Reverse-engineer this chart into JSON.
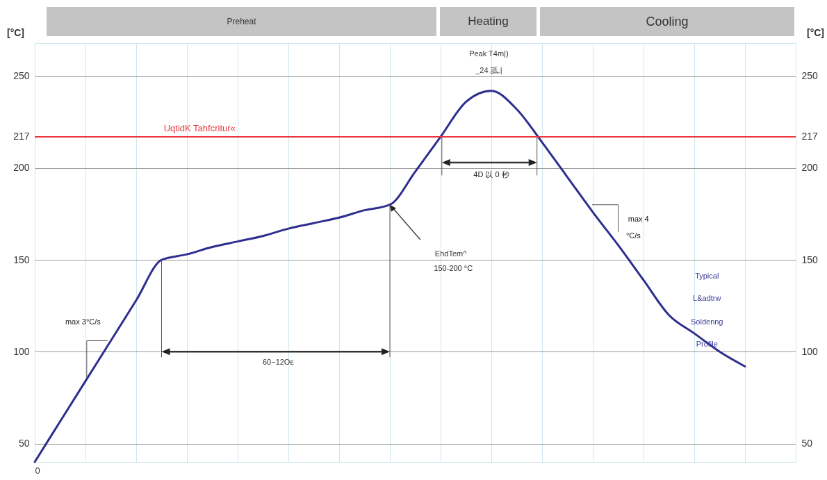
{
  "chart_data": {
    "type": "line",
    "categories": [
      "0",
      null,
      null,
      null,
      null,
      null,
      null,
      null,
      null,
      null,
      null,
      null,
      null,
      null,
      null,
      null,
      null,
      null,
      null,
      null,
      null,
      null,
      null,
      null,
      null,
      null,
      null,
      null,
      null,
      null,
      null
    ],
    "series": [
      {
        "color": "#2e2e8f",
        "values": [
          40,
          62,
          84,
          106,
          128,
          150,
          153,
          157,
          160,
          163,
          167,
          170,
          173,
          177,
          180,
          198,
          217,
          236,
          242,
          232,
          214,
          195,
          176,
          158,
          139,
          120,
          110,
          100,
          92,
          null,
          null
        ]
      }
    ],
    "ylabel": "[°C]",
    "y2label": "[°C]",
    "ylim": [
      40,
      268
    ],
    "yticks": [
      50,
      100,
      150,
      200,
      217,
      250
    ],
    "y2lim": [
      40,
      268
    ],
    "y2ticks": [
      50,
      100,
      150,
      200,
      217,
      250
    ],
    "grid": true,
    "marker": "none",
    "line_style": "solid",
    "ref_lines": [
      {
        "axis": "y",
        "value": 217,
        "label": "UqtidK Tahfcritur«",
        "color": "#e8383d"
      }
    ],
    "annotations": [
      "Preheat",
      "Heating",
      "Cooling",
      "Peak T4m|)",
      "_24 詆.|",
      "4D 以 0 秒",
      "EhdTem^",
      "150-200 °C",
      "max 4",
      "°C/s",
      "Typical",
      "L&adtrw",
      "Soldenng",
      "Profile",
      "max 3°C/s",
      "60−12Oᴇ"
    ]
  }
}
